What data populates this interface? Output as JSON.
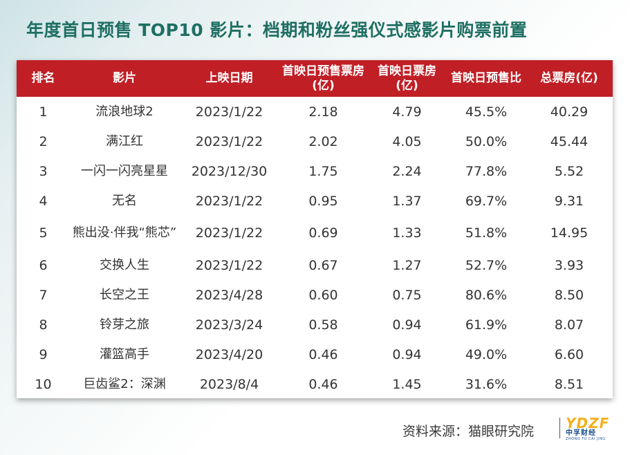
{
  "title": "年度首日预售 TOP10 影片：档期和粉丝强仪式感影片购票前置",
  "chart_data": {
    "type": "table",
    "columns": [
      "排名",
      "影片",
      "上映日期",
      "首映日预售票房(亿)",
      "首映日票房(亿)",
      "首映日预售比",
      "总票房(亿)"
    ],
    "rows": [
      {
        "rank": "1",
        "film": "流浪地球2",
        "date": "2023/1/22",
        "presale": "2.18",
        "first_day": "4.79",
        "ratio": "45.5%",
        "total": "40.29"
      },
      {
        "rank": "2",
        "film": "满江红",
        "date": "2023/1/22",
        "presale": "2.02",
        "first_day": "4.05",
        "ratio": "50.0%",
        "total": "45.44"
      },
      {
        "rank": "3",
        "film": "一闪一闪亮星星",
        "date": "2023/12/30",
        "presale": "1.75",
        "first_day": "2.24",
        "ratio": "77.8%",
        "total": "5.52"
      },
      {
        "rank": "4",
        "film": "无名",
        "date": "2023/1/22",
        "presale": "0.95",
        "first_day": "1.37",
        "ratio": "69.7%",
        "total": "9.31"
      },
      {
        "rank": "5",
        "film": "熊出没·伴我“熊芯”",
        "date": "2023/1/22",
        "presale": "0.69",
        "first_day": "1.33",
        "ratio": "51.8%",
        "total": "14.95"
      },
      {
        "rank": "6",
        "film": "交换人生",
        "date": "2023/1/22",
        "presale": "0.67",
        "first_day": "1.27",
        "ratio": "52.7%",
        "total": "3.93"
      },
      {
        "rank": "7",
        "film": "长空之王",
        "date": "2023/4/28",
        "presale": "0.60",
        "first_day": "0.75",
        "ratio": "80.6%",
        "total": "8.50"
      },
      {
        "rank": "8",
        "film": "铃芽之旅",
        "date": "2023/3/24",
        "presale": "0.58",
        "first_day": "0.94",
        "ratio": "61.9%",
        "total": "8.07"
      },
      {
        "rank": "9",
        "film": "灌篮高手",
        "date": "2023/4/20",
        "presale": "0.46",
        "first_day": "0.94",
        "ratio": "49.0%",
        "total": "6.60"
      },
      {
        "rank": "10",
        "film": "巨齿鲨2：深渊",
        "date": "2023/8/4",
        "presale": "0.46",
        "first_day": "1.45",
        "ratio": "31.6%",
        "total": "8.51"
      }
    ]
  },
  "footer": {
    "source": "资料来源：猫眼研究院",
    "logo_mark": "YDZF",
    "logo_cn": "中孚财经",
    "logo_en": "ZHONG FU CAI JING"
  },
  "colors": {
    "title": "#1f6f63",
    "header_bg": "#c11f26",
    "header_text": "#ffffff",
    "logo_yellow": "#f2b21c",
    "logo_blue": "#1b4f8a"
  }
}
